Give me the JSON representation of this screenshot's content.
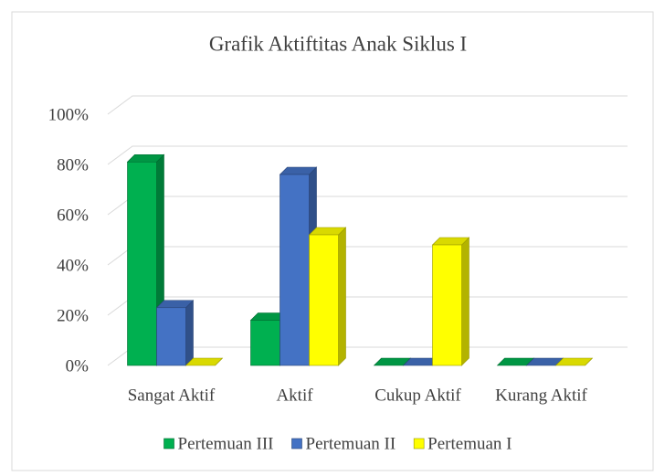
{
  "chart_data": {
    "type": "bar3d",
    "title": "Grafik Aktiftitas Anak Siklus I",
    "categories": [
      "Sangat Aktif",
      "Aktif",
      "Cukup Aktif",
      "Kurang Aktif"
    ],
    "series": [
      {
        "name": "Pertemuan III",
        "color": "#00b050",
        "values": [
          81,
          18,
          0,
          0
        ]
      },
      {
        "name": "Pertemuan II",
        "color": "#4472c4",
        "values": [
          23,
          76,
          0,
          0
        ]
      },
      {
        "name": "Pertemuan I",
        "color": "#ffff00",
        "values": [
          0,
          52,
          48,
          0
        ]
      }
    ],
    "ylim": [
      0,
      100
    ],
    "yticks": [
      {
        "value": 0,
        "label": "0%"
      },
      {
        "value": 20,
        "label": "20%"
      },
      {
        "value": 40,
        "label": "40%"
      },
      {
        "value": 60,
        "label": "60%"
      },
      {
        "value": 80,
        "label": "80%"
      },
      {
        "value": 100,
        "label": "100%"
      }
    ],
    "grid": true,
    "legend": "bottom"
  }
}
